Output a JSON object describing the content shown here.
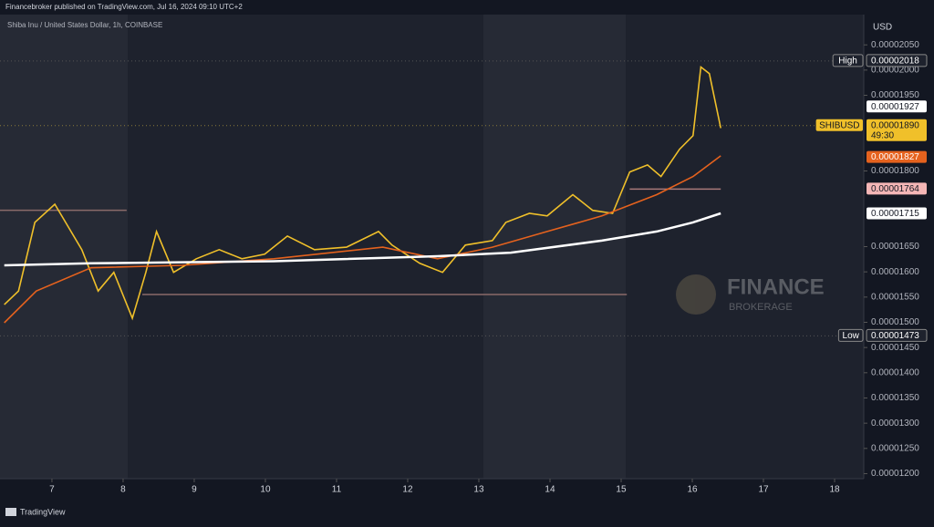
{
  "header": {
    "text": "Financebroker published on TradingView.com, Jul 16, 2024 09:10 UTC+2"
  },
  "footer": {
    "text": "TradingView"
  },
  "watermark": {
    "title": "FINANCE",
    "subtitle": "BROKERAGE"
  },
  "chart_data": {
    "type": "line",
    "subtitle": "Shiba Inu / United States Dollar, 1h, COINBASE",
    "y_unit": "USD",
    "xlim": [
      6.27,
      18.41
    ],
    "ylim": [
      1.19e-05,
      2.11e-05
    ],
    "xticks": [
      7,
      8,
      9,
      10,
      11,
      12,
      13,
      14,
      15,
      16,
      17,
      18
    ],
    "yticks": [
      {
        "value": 2.05e-05,
        "label": "0.00002050"
      },
      {
        "value": 2e-05,
        "label": "0.00002000"
      },
      {
        "value": 1.95e-05,
        "label": "0.00001950"
      },
      {
        "value": 1.8e-05,
        "label": "0.00001800"
      },
      {
        "value": 1.65e-05,
        "label": "0.00001650"
      },
      {
        "value": 1.6e-05,
        "label": "0.00001600"
      },
      {
        "value": 1.55e-05,
        "label": "0.00001550"
      },
      {
        "value": 1.5e-05,
        "label": "0.00001500"
      },
      {
        "value": 1.45e-05,
        "label": "0.00001450"
      },
      {
        "value": 1.4e-05,
        "label": "0.00001400"
      },
      {
        "value": 1.35e-05,
        "label": "0.00001350"
      },
      {
        "value": 1.3e-05,
        "label": "0.00001300"
      },
      {
        "value": 1.25e-05,
        "label": "0.00001250"
      },
      {
        "value": 1.2e-05,
        "label": "0.00001200"
      }
    ],
    "series": [
      {
        "name": "SHIBUSD",
        "color": "#f0c02a",
        "x": [
          6.33,
          6.53,
          6.76,
          7.04,
          7.23,
          7.42,
          7.65,
          7.87,
          8.13,
          8.32,
          8.47,
          8.71,
          9.03,
          9.35,
          9.67,
          9.99,
          10.31,
          10.69,
          11.14,
          11.59,
          11.78,
          12.17,
          12.49,
          12.81,
          13.19,
          13.38,
          13.71,
          13.96,
          14.32,
          14.6,
          14.88,
          15.12,
          15.37,
          15.56,
          15.82,
          16.01,
          16.12,
          16.24,
          16.4
        ],
        "values": [
          1.535e-05,
          1.562e-05,
          1.698e-05,
          1.734e-05,
          1.689e-05,
          1.644e-05,
          1.562e-05,
          1.599e-05,
          1.508e-05,
          1.599e-05,
          1.68e-05,
          1.599e-05,
          1.626e-05,
          1.644e-05,
          1.626e-05,
          1.635e-05,
          1.671e-05,
          1.644e-05,
          1.649e-05,
          1.68e-05,
          1.653e-05,
          1.617e-05,
          1.599e-05,
          1.653e-05,
          1.662e-05,
          1.698e-05,
          1.716e-05,
          1.711e-05,
          1.753e-05,
          1.722e-05,
          1.716e-05,
          1.798e-05,
          1.812e-05,
          1.789e-05,
          1.843e-05,
          1.87e-05,
          2.006e-05,
          1.993e-05,
          1.885e-05
        ]
      },
      {
        "color": "#e5621e",
        "x": [
          6.33,
          6.78,
          7.55,
          8.83,
          10.12,
          11.65,
          12.42,
          13.19,
          13.96,
          14.73,
          15.5,
          16.01,
          16.4
        ],
        "values": [
          1.499e-05,
          1.562e-05,
          1.608e-05,
          1.613e-05,
          1.626e-05,
          1.649e-05,
          1.626e-05,
          1.649e-05,
          1.68e-05,
          1.711e-05,
          1.753e-05,
          1.789e-05,
          1.83e-05
        ]
      },
      {
        "color": "#ffffff",
        "x": [
          6.33,
          7.55,
          10.12,
          12.42,
          13.45,
          14.73,
          15.5,
          16.01,
          16.4
        ],
        "values": [
          1.613e-05,
          1.617e-05,
          1.621e-05,
          1.631e-05,
          1.638e-05,
          1.662e-05,
          1.68e-05,
          1.698e-05,
          1.716e-05
        ]
      }
    ],
    "levels": [
      {
        "value": 1.764e-05,
        "x": [
          15.12,
          16.4
        ],
        "color": "#a87a7a"
      },
      {
        "value": 1.722e-05,
        "x": [
          6.27,
          8.05
        ],
        "color": "#8a6a6a"
      },
      {
        "value": 1.555e-05,
        "x": [
          8.27,
          15.08
        ],
        "color": "#8a6a6a"
      }
    ],
    "markers": [
      {
        "tag": "High",
        "value": 2.018e-05,
        "value_label": "0.00002018",
        "bg": "#1e222d",
        "fg": "#ffffff",
        "dotted": true
      },
      {
        "value": 1.927e-05,
        "value_label": "0.00001927",
        "bg": "#ffffff",
        "fg": "#131722"
      },
      {
        "tag": "SHIBUSD",
        "value": 1.89e-05,
        "value_label": "0.00001890",
        "timer": "49:30",
        "bg": "#f0c02a",
        "fg": "#131722",
        "dotted": true
      },
      {
        "value": 1.827e-05,
        "value_label": "0.00001827",
        "bg": "#e5621e",
        "fg": "#ffffff"
      },
      {
        "value": 1.764e-05,
        "value_label": "0.00001764",
        "bg": "#f4b6b6",
        "fg": "#131722"
      },
      {
        "value": 1.715e-05,
        "value_label": "0.00001715",
        "bg": "#ffffff",
        "fg": "#131722"
      },
      {
        "tag": "Low",
        "value": 1.473e-05,
        "value_label": "0.00001473",
        "bg": "#1e222d",
        "fg": "#ffffff",
        "dotted": true
      }
    ]
  }
}
